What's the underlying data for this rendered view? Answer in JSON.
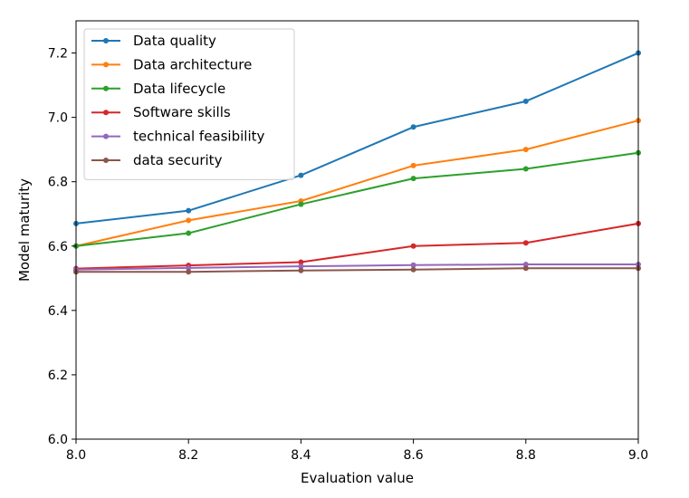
{
  "chart_data": {
    "type": "line",
    "title": "",
    "xlabel": "Evaluation value",
    "ylabel": "Model maturity",
    "xlim": [
      8.0,
      9.0
    ],
    "ylim": [
      6.0,
      7.3
    ],
    "x_ticks": [
      "8.0",
      "8.2",
      "8.4",
      "8.6",
      "8.8",
      "9.0"
    ],
    "y_ticks": [
      "6.0",
      "6.2",
      "6.4",
      "6.6",
      "6.8",
      "7.0",
      "7.2"
    ],
    "grid": false,
    "legend_position": "top-left",
    "x": [
      8.0,
      8.2,
      8.4,
      8.6,
      8.8,
      9.0
    ],
    "series": [
      {
        "name": "Data quality",
        "color": "#1f77b4",
        "values": [
          6.67,
          6.71,
          6.82,
          6.97,
          7.05,
          7.2
        ]
      },
      {
        "name": "Data architecture",
        "color": "#ff7f0e",
        "values": [
          6.6,
          6.68,
          6.74,
          6.85,
          6.9,
          6.99
        ]
      },
      {
        "name": "Data lifecycle",
        "color": "#2ca02c",
        "values": [
          6.6,
          6.64,
          6.73,
          6.81,
          6.84,
          6.89
        ]
      },
      {
        "name": "Software skills",
        "color": "#d62728",
        "values": [
          6.53,
          6.54,
          6.55,
          6.6,
          6.61,
          6.67
        ]
      },
      {
        "name": "technical feasibility",
        "color": "#9467bd",
        "values": [
          6.527,
          6.532,
          6.537,
          6.541,
          6.543,
          6.543
        ]
      },
      {
        "name": "data security",
        "color": "#8c564b",
        "values": [
          6.52,
          6.52,
          6.524,
          6.527,
          6.531,
          6.531
        ]
      }
    ]
  }
}
